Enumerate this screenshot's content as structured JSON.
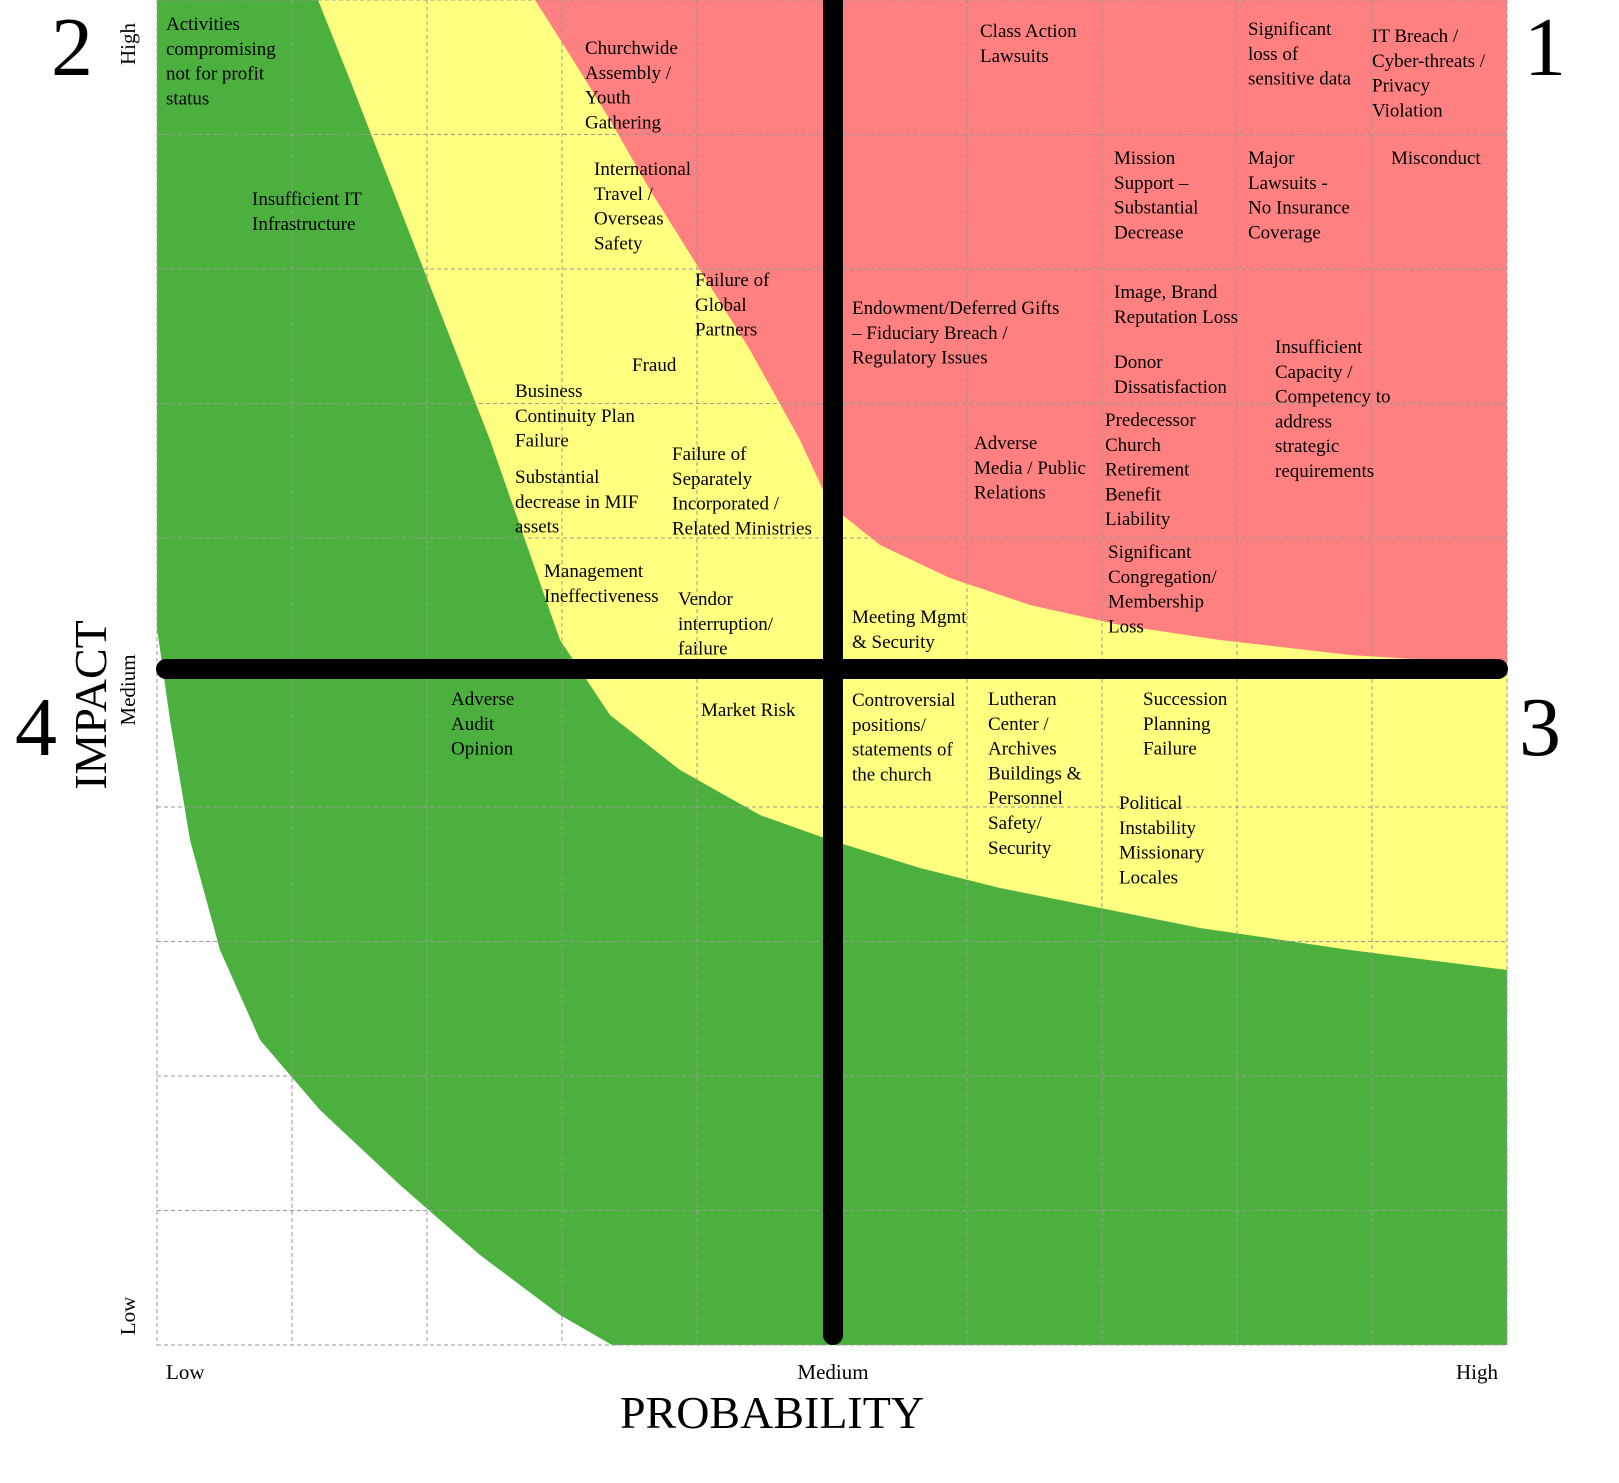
{
  "quadrants": [
    "1",
    "2",
    "3",
    "4"
  ],
  "axes": {
    "y_title": "IMPACT",
    "x_title": "PROBABILITY",
    "y_ticks": [
      "High",
      "Medium",
      "Low"
    ],
    "x_ticks": [
      "Low",
      "Medium",
      "High"
    ]
  },
  "risks": [
    {
      "lines": [
        "Activities",
        "compromising",
        "not for profit",
        "status"
      ]
    },
    {
      "lines": [
        "Churchwide",
        "Assembly /",
        "Youth",
        "Gathering"
      ]
    },
    {
      "lines": [
        "Class Action",
        "Lawsuits"
      ]
    },
    {
      "lines": [
        "Significant",
        "loss of",
        "sensitive data"
      ]
    },
    {
      "lines": [
        "IT Breach /",
        "Cyber-threats /",
        "Privacy",
        "Violation"
      ]
    },
    {
      "lines": [
        "Insufficient IT",
        "Infrastructure"
      ]
    },
    {
      "lines": [
        "International",
        "Travel /",
        "Overseas",
        "Safety"
      ]
    },
    {
      "lines": [
        "Mission",
        "Support –",
        "Substantial",
        "Decrease"
      ]
    },
    {
      "lines": [
        "Major",
        "Lawsuits  -",
        "No Insurance",
        "Coverage"
      ]
    },
    {
      "lines": [
        "Misconduct"
      ]
    },
    {
      "lines": [
        "Failure of",
        "Global",
        "Partners"
      ]
    },
    {
      "lines": [
        "Endowment/Deferred Gifts",
        "– Fiduciary Breach /",
        "Regulatory Issues"
      ]
    },
    {
      "lines": [
        "Image, Brand",
        "Reputation Loss"
      ]
    },
    {
      "lines": [
        "Fraud"
      ]
    },
    {
      "lines": [
        "Donor",
        "Dissatisfaction"
      ]
    },
    {
      "lines": [
        "Insufficient",
        "Capacity /",
        "Competency to",
        "address",
        "strategic",
        "requirements"
      ]
    },
    {
      "lines": [
        "Business",
        "Continuity Plan",
        "Failure"
      ]
    },
    {
      "lines": [
        "Predecessor",
        "Church",
        "Retirement",
        "Benefit",
        "Liability"
      ]
    },
    {
      "lines": [
        "Adverse",
        "Media / Public",
        "Relations"
      ]
    },
    {
      "lines": [
        "Failure of",
        "Separately",
        "Incorporated /",
        "Related Ministries"
      ]
    },
    {
      "lines": [
        "Substantial",
        "decrease in MIF",
        "assets"
      ]
    },
    {
      "lines": [
        "Significant",
        "Congregation/",
        "Membership",
        "Loss"
      ]
    },
    {
      "lines": [
        "Management",
        "Ineffectiveness"
      ]
    },
    {
      "lines": [
        "Vendor",
        "interruption/",
        "failure"
      ]
    },
    {
      "lines": [
        "Meeting Mgmt",
        "& Security"
      ]
    },
    {
      "lines": [
        "Adverse",
        "Audit",
        "Opinion"
      ]
    },
    {
      "lines": [
        "Market Risk"
      ]
    },
    {
      "lines": [
        "Controversial",
        "positions/",
        "statements of",
        "the church"
      ]
    },
    {
      "lines": [
        "Lutheran",
        "Center /",
        "Archives",
        "Buildings &",
        "Personnel",
        "Safety/",
        "Security"
      ]
    },
    {
      "lines": [
        "Succession",
        "Planning",
        "Failure"
      ]
    },
    {
      "lines": [
        "Political",
        "Instability",
        "Missionary",
        "Locales"
      ]
    }
  ]
}
